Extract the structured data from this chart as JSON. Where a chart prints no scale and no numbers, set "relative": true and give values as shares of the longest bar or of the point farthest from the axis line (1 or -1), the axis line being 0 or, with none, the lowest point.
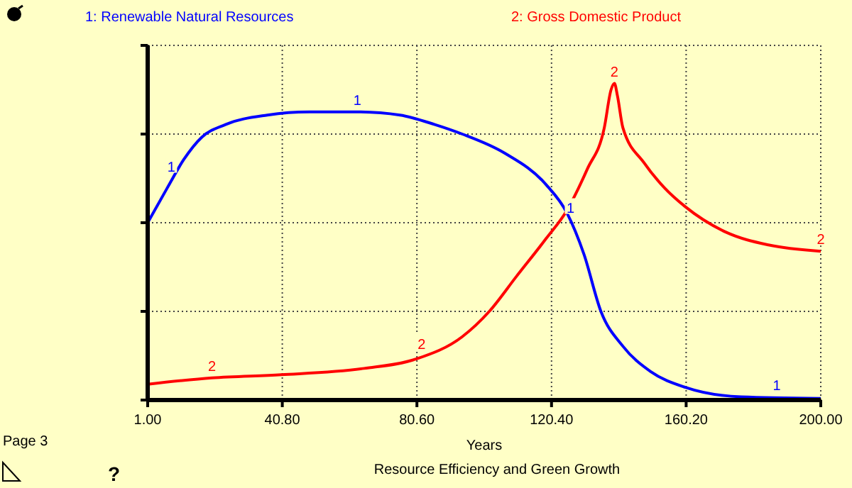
{
  "chart_data": {
    "type": "line",
    "title": "Resource Efficiency and Green Growth",
    "xlabel": "Years",
    "relative": true,
    "grid": true,
    "tick_labels": "x",
    "line_style": "solid",
    "marker": "none",
    "xlim": [
      1,
      200
    ],
    "xticks": [
      {
        "value": 1,
        "label": "1.00"
      },
      {
        "value": 40.8,
        "label": "40.80"
      },
      {
        "value": 80.6,
        "label": "80.60"
      },
      {
        "value": 120.4,
        "label": "120.40"
      },
      {
        "value": 160.2,
        "label": "160.20"
      },
      {
        "value": 200,
        "label": "200.00"
      }
    ],
    "annotations": [
      "Page 3",
      "?",
      {
        "text": "1",
        "x": 8,
        "y": 0.7
      },
      {
        "text": "1",
        "x": 63,
        "y": 0.91
      },
      {
        "text": "1",
        "x": 126,
        "y": 0.57
      },
      {
        "text": "1",
        "x": 187,
        "y": 0.01
      },
      {
        "text": "2",
        "x": 20,
        "y": 0.07
      },
      {
        "text": "2",
        "x": 82,
        "y": 0.14
      },
      {
        "text": "2",
        "x": 139,
        "y": 1
      },
      {
        "text": "2",
        "x": 200,
        "y": 0.47
      }
    ],
    "series": [
      {
        "name": "1: Renewable  Natural Resources",
        "color": "#0000ff",
        "x": [
          1,
          6.8,
          11.7,
          17,
          24,
          36.4,
          48.8,
          63,
          75.6,
          85.9,
          94,
          106.5,
          118.8,
          125,
          130,
          135,
          141.5,
          149.7,
          160,
          176.5,
          200
        ],
        "values": [
          0.56,
          0.67,
          0.76,
          0.83,
          0.87,
          0.9,
          0.91,
          0.91,
          0.9,
          0.87,
          0.84,
          0.78,
          0.68,
          0.59,
          0.46,
          0.28,
          0.17,
          0.09,
          0.04,
          0.01,
          0.005
        ]
      },
      {
        "name": "2: Gross Domestic Product",
        "color": "#ff0000",
        "x": [
          1,
          20,
          40.5,
          65,
          80.5,
          94,
          102,
          110,
          118.8,
          125,
          131,
          136,
          138,
          139,
          139.9,
          141.5,
          147.7,
          153.8,
          160,
          172,
          184.5,
          200
        ],
        "values": [
          0.05,
          0.07,
          0.08,
          0.1,
          0.13,
          0.2,
          0.28,
          0.39,
          0.51,
          0.6,
          0.73,
          0.86,
          0.98,
          1,
          0.96,
          0.86,
          0.75,
          0.67,
          0.61,
          0.53,
          0.49,
          0.47
        ]
      }
    ]
  }
}
